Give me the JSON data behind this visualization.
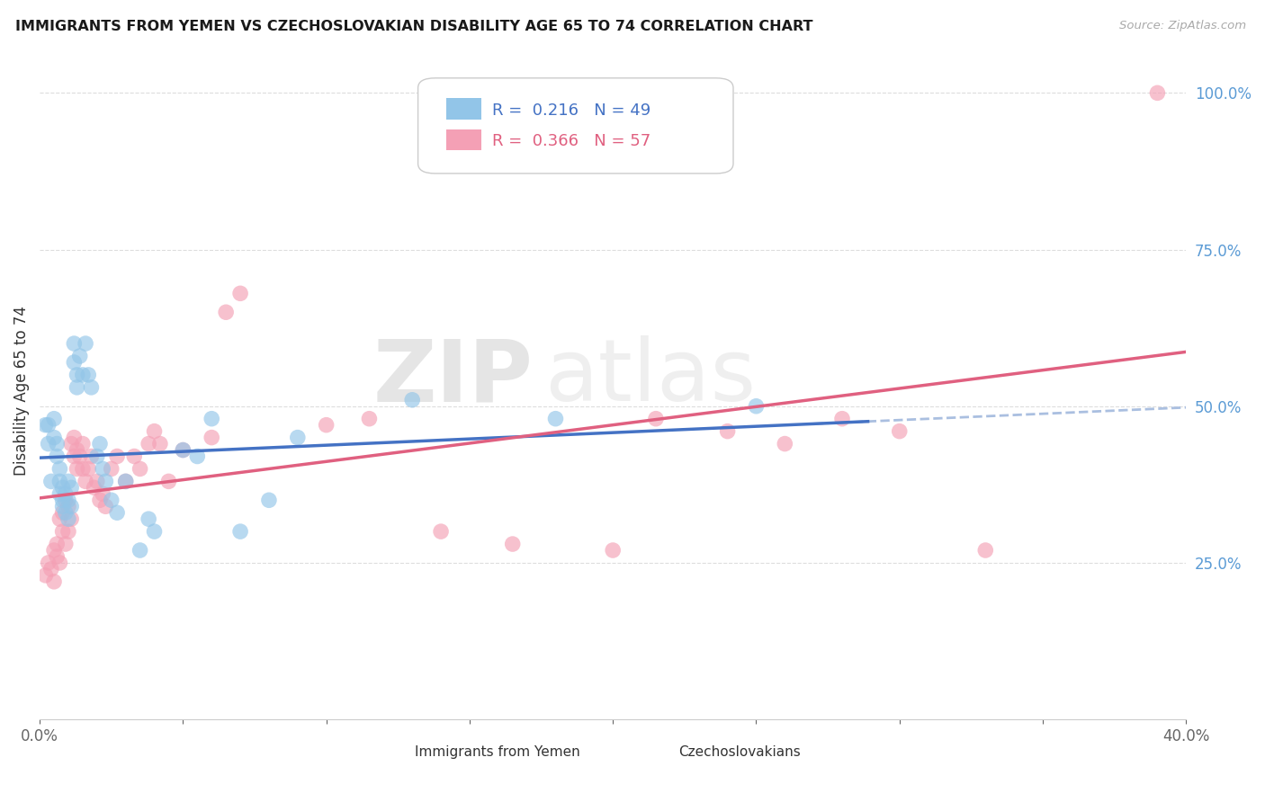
{
  "title": "IMMIGRANTS FROM YEMEN VS CZECHOSLOVAKIAN DISABILITY AGE 65 TO 74 CORRELATION CHART",
  "source": "Source: ZipAtlas.com",
  "ylabel": "Disability Age 65 to 74",
  "right_yticks": [
    "100.0%",
    "75.0%",
    "50.0%",
    "25.0%"
  ],
  "right_ytick_vals": [
    1.0,
    0.75,
    0.5,
    0.25
  ],
  "xlim": [
    0.0,
    0.4
  ],
  "ylim": [
    0.0,
    1.05
  ],
  "color_blue": "#92C5E8",
  "color_pink": "#F4A0B5",
  "line_blue": "#4472C4",
  "line_pink": "#E06080",
  "line_dashed": "#AABFE0",
  "watermark_zip": "ZIP",
  "watermark_atlas": "atlas",
  "yemen_x": [
    0.002,
    0.003,
    0.003,
    0.004,
    0.005,
    0.005,
    0.006,
    0.006,
    0.007,
    0.007,
    0.007,
    0.008,
    0.008,
    0.008,
    0.009,
    0.009,
    0.01,
    0.01,
    0.01,
    0.011,
    0.011,
    0.012,
    0.012,
    0.013,
    0.013,
    0.014,
    0.015,
    0.016,
    0.017,
    0.018,
    0.02,
    0.021,
    0.022,
    0.023,
    0.025,
    0.027,
    0.03,
    0.035,
    0.038,
    0.04,
    0.05,
    0.055,
    0.06,
    0.07,
    0.08,
    0.09,
    0.13,
    0.18,
    0.25
  ],
  "yemen_y": [
    0.47,
    0.44,
    0.47,
    0.38,
    0.45,
    0.48,
    0.42,
    0.44,
    0.36,
    0.4,
    0.38,
    0.34,
    0.37,
    0.35,
    0.33,
    0.36,
    0.32,
    0.35,
    0.38,
    0.34,
    0.37,
    0.6,
    0.57,
    0.55,
    0.53,
    0.58,
    0.55,
    0.6,
    0.55,
    0.53,
    0.42,
    0.44,
    0.4,
    0.38,
    0.35,
    0.33,
    0.38,
    0.27,
    0.32,
    0.3,
    0.43,
    0.42,
    0.48,
    0.3,
    0.35,
    0.45,
    0.51,
    0.48,
    0.5
  ],
  "czech_x": [
    0.002,
    0.003,
    0.004,
    0.005,
    0.005,
    0.006,
    0.006,
    0.007,
    0.007,
    0.008,
    0.008,
    0.009,
    0.009,
    0.01,
    0.01,
    0.011,
    0.011,
    0.012,
    0.012,
    0.013,
    0.013,
    0.014,
    0.015,
    0.015,
    0.016,
    0.017,
    0.018,
    0.019,
    0.02,
    0.021,
    0.022,
    0.023,
    0.025,
    0.027,
    0.03,
    0.033,
    0.035,
    0.038,
    0.04,
    0.042,
    0.045,
    0.05,
    0.06,
    0.065,
    0.07,
    0.1,
    0.115,
    0.14,
    0.165,
    0.2,
    0.215,
    0.24,
    0.26,
    0.28,
    0.3,
    0.33,
    0.39
  ],
  "czech_y": [
    0.23,
    0.25,
    0.24,
    0.22,
    0.27,
    0.26,
    0.28,
    0.25,
    0.32,
    0.3,
    0.33,
    0.28,
    0.35,
    0.3,
    0.34,
    0.32,
    0.44,
    0.42,
    0.45,
    0.4,
    0.43,
    0.42,
    0.44,
    0.4,
    0.38,
    0.4,
    0.42,
    0.37,
    0.38,
    0.35,
    0.36,
    0.34,
    0.4,
    0.42,
    0.38,
    0.42,
    0.4,
    0.44,
    0.46,
    0.44,
    0.38,
    0.43,
    0.45,
    0.65,
    0.68,
    0.47,
    0.48,
    0.3,
    0.28,
    0.27,
    0.48,
    0.46,
    0.44,
    0.48,
    0.46,
    0.27,
    1.0
  ]
}
